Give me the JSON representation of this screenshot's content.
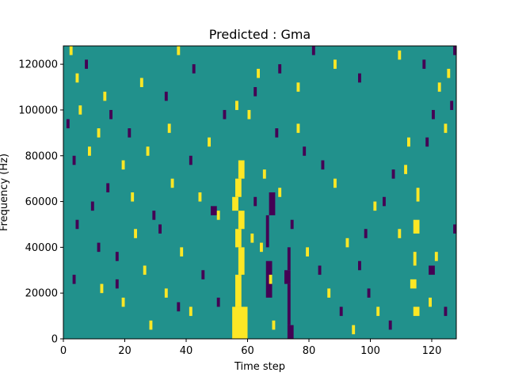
{
  "chart_data": {
    "type": "heatmap",
    "title": "Predicted : Gma",
    "xlabel": "Time step",
    "ylabel": "Frequency (Hz)",
    "xlim": [
      0,
      128
    ],
    "ylim": [
      0,
      128000
    ],
    "xticks": [
      0,
      20,
      40,
      60,
      80,
      100,
      120
    ],
    "yticks": [
      0,
      20000,
      40000,
      60000,
      80000,
      100000,
      120000
    ],
    "xtick_labels": [
      "0",
      "20",
      "40",
      "60",
      "80",
      "100",
      "120"
    ],
    "ytick_labels": [
      "0",
      "20000",
      "40000",
      "60000",
      "80000",
      "100000",
      "120000"
    ],
    "colormap": "viridis",
    "value_levels": {
      "low": -1,
      "mid": 0,
      "high": 1
    },
    "colors": {
      "low": "#440154",
      "mid": "#21918c",
      "high": "#fde725"
    },
    "background_value": 0,
    "grid": false,
    "cells": [
      [
        55,
        60,
        1,
        0,
        14
      ],
      [
        56,
        58,
        1,
        14,
        28
      ],
      [
        57,
        59,
        1,
        28,
        40
      ],
      [
        56,
        58,
        1,
        40,
        48
      ],
      [
        57,
        59,
        1,
        48,
        56
      ],
      [
        55,
        57,
        1,
        56,
        62
      ],
      [
        56,
        58,
        1,
        62,
        70
      ],
      [
        57,
        59,
        1,
        70,
        78
      ],
      [
        73,
        75,
        -1,
        0,
        6
      ],
      [
        73,
        74,
        -1,
        6,
        24
      ],
      [
        72,
        74,
        -1,
        24,
        30
      ],
      [
        73,
        74,
        -1,
        30,
        40
      ],
      [
        66,
        68,
        -1,
        18,
        34
      ],
      [
        66,
        67,
        -1,
        40,
        54
      ],
      [
        67,
        69,
        -1,
        54,
        64
      ],
      [
        68,
        69,
        1,
        4,
        8
      ],
      [
        67,
        68,
        1,
        24,
        28
      ],
      [
        64,
        65,
        1,
        38,
        42
      ],
      [
        61,
        62,
        1,
        42,
        46
      ],
      [
        48,
        50,
        -1,
        54,
        58
      ],
      [
        50,
        51,
        1,
        52,
        56
      ],
      [
        60,
        61,
        1,
        96,
        100
      ],
      [
        65,
        66,
        1,
        70,
        74
      ],
      [
        114,
        116,
        1,
        10,
        14
      ],
      [
        113,
        115,
        1,
        22,
        26
      ],
      [
        114,
        115,
        1,
        32,
        38
      ],
      [
        114,
        116,
        1,
        46,
        52
      ],
      [
        115,
        116,
        1,
        60,
        66
      ],
      [
        119,
        121,
        -1,
        28,
        32
      ],
      [
        121,
        122,
        1,
        34,
        38
      ],
      [
        127,
        128,
        -1,
        46,
        50
      ],
      [
        2,
        3,
        1,
        124,
        128
      ],
      [
        7,
        8,
        -1,
        118,
        122
      ],
      [
        4,
        5,
        1,
        112,
        116
      ],
      [
        13,
        14,
        1,
        104,
        108
      ],
      [
        5,
        6,
        1,
        98,
        102
      ],
      [
        1,
        2,
        -1,
        92,
        96
      ],
      [
        11,
        12,
        1,
        88,
        92
      ],
      [
        21,
        22,
        -1,
        88,
        92
      ],
      [
        8,
        9,
        1,
        80,
        84
      ],
      [
        3,
        4,
        -1,
        76,
        80
      ],
      [
        27,
        28,
        1,
        80,
        84
      ],
      [
        19,
        20,
        1,
        74,
        78
      ],
      [
        14,
        15,
        -1,
        64,
        68
      ],
      [
        9,
        10,
        -1,
        56,
        60
      ],
      [
        22,
        23,
        1,
        60,
        64
      ],
      [
        4,
        5,
        -1,
        48,
        52
      ],
      [
        11,
        12,
        -1,
        38,
        42
      ],
      [
        17,
        18,
        -1,
        34,
        38
      ],
      [
        26,
        27,
        1,
        28,
        32
      ],
      [
        3,
        4,
        -1,
        24,
        28
      ],
      [
        12,
        13,
        1,
        20,
        24
      ],
      [
        19,
        20,
        1,
        14,
        18
      ],
      [
        28,
        29,
        1,
        4,
        8
      ],
      [
        37,
        38,
        -1,
        12,
        16
      ],
      [
        31,
        32,
        -1,
        46,
        50
      ],
      [
        38,
        39,
        1,
        36,
        40
      ],
      [
        44,
        45,
        1,
        60,
        64
      ],
      [
        47,
        48,
        1,
        84,
        88
      ],
      [
        52,
        53,
        -1,
        96,
        100
      ],
      [
        56,
        57,
        1,
        100,
        104
      ],
      [
        62,
        63,
        -1,
        106,
        110
      ],
      [
        69,
        70,
        -1,
        88,
        92
      ],
      [
        76,
        77,
        1,
        90,
        94
      ],
      [
        78,
        79,
        -1,
        80,
        84
      ],
      [
        84,
        85,
        -1,
        74,
        78
      ],
      [
        88,
        89,
        1,
        66,
        70
      ],
      [
        92,
        93,
        1,
        40,
        44
      ],
      [
        96,
        97,
        -1,
        30,
        34
      ],
      [
        99,
        100,
        -1,
        18,
        22
      ],
      [
        102,
        103,
        1,
        10,
        14
      ],
      [
        106,
        107,
        -1,
        4,
        8
      ],
      [
        109,
        110,
        1,
        44,
        48
      ],
      [
        104,
        105,
        -1,
        58,
        62
      ],
      [
        111,
        112,
        1,
        72,
        76
      ],
      [
        118,
        119,
        -1,
        84,
        88
      ],
      [
        124,
        125,
        1,
        90,
        94
      ],
      [
        126,
        127,
        -1,
        100,
        104
      ],
      [
        122,
        123,
        1,
        108,
        112
      ],
      [
        117,
        118,
        -1,
        118,
        122
      ],
      [
        109,
        110,
        1,
        122,
        126
      ],
      [
        96,
        97,
        -1,
        112,
        116
      ],
      [
        88,
        89,
        1,
        118,
        122
      ],
      [
        81,
        82,
        -1,
        124,
        128
      ],
      [
        76,
        77,
        1,
        108,
        112
      ],
      [
        70,
        71,
        -1,
        116,
        120
      ],
      [
        63,
        64,
        1,
        114,
        118
      ],
      [
        42,
        43,
        -1,
        116,
        120
      ],
      [
        37,
        38,
        1,
        124,
        128
      ],
      [
        33,
        34,
        -1,
        104,
        108
      ],
      [
        25,
        26,
        1,
        110,
        114
      ],
      [
        15,
        16,
        -1,
        96,
        100
      ],
      [
        34,
        35,
        1,
        90,
        94
      ],
      [
        41,
        42,
        -1,
        76,
        80
      ],
      [
        35,
        36,
        1,
        66,
        70
      ],
      [
        29,
        30,
        -1,
        52,
        56
      ],
      [
        23,
        24,
        1,
        44,
        48
      ],
      [
        17,
        18,
        -1,
        22,
        26
      ],
      [
        33,
        34,
        1,
        18,
        22
      ],
      [
        45,
        46,
        -1,
        26,
        30
      ],
      [
        41,
        42,
        1,
        10,
        14
      ],
      [
        50,
        51,
        -1,
        14,
        18
      ],
      [
        62,
        63,
        -1,
        58,
        62
      ],
      [
        70,
        71,
        1,
        62,
        66
      ],
      [
        74,
        75,
        -1,
        48,
        52
      ],
      [
        79,
        80,
        1,
        36,
        40
      ],
      [
        83,
        84,
        -1,
        28,
        32
      ],
      [
        86,
        87,
        1,
        18,
        22
      ],
      [
        90,
        91,
        -1,
        10,
        14
      ],
      [
        94,
        95,
        1,
        2,
        6
      ],
      [
        98,
        99,
        -1,
        44,
        48
      ],
      [
        101,
        102,
        1,
        56,
        60
      ],
      [
        107,
        108,
        -1,
        70,
        74
      ],
      [
        112,
        113,
        1,
        84,
        88
      ],
      [
        120,
        121,
        -1,
        96,
        100
      ],
      [
        125,
        126,
        1,
        114,
        118
      ],
      [
        127,
        128,
        -1,
        124,
        128
      ],
      [
        119,
        120,
        1,
        14,
        18
      ],
      [
        124,
        125,
        -1,
        10,
        14
      ]
    ]
  }
}
